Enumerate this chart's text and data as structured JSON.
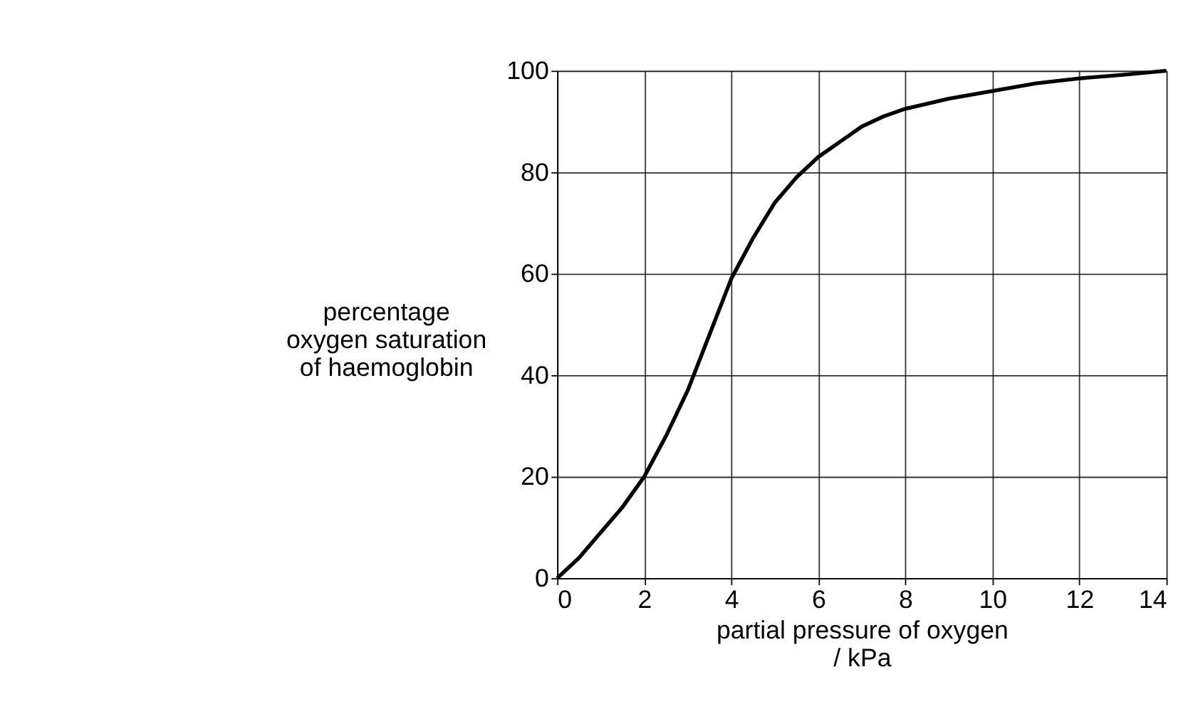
{
  "chart_data": {
    "type": "line",
    "xlabel": "partial pressure of oxygen\n/ kPa",
    "ylabel": "percentage\noxygen saturation\nof haemoglobin",
    "x": [
      0,
      0.5,
      1,
      1.5,
      2,
      2.5,
      3,
      3.5,
      4,
      4.5,
      5,
      5.5,
      6,
      6.5,
      7,
      7.5,
      8,
      9,
      10,
      11,
      12,
      13,
      14
    ],
    "series": [
      {
        "color": "#000000",
        "values": [
          0,
          4,
          9,
          14,
          20,
          28,
          37,
          48,
          59,
          67,
          74,
          79,
          83,
          86,
          89,
          91,
          92.5,
          94.5,
          96,
          97.5,
          98.5,
          99.2,
          100
        ]
      }
    ],
    "xlim": [
      0,
      14
    ],
    "xticks": [
      0,
      2,
      4,
      6,
      8,
      10,
      12,
      14
    ],
    "ylim": [
      0,
      100
    ],
    "yticks": [
      0,
      20,
      40,
      60,
      80,
      100
    ],
    "grid": true,
    "marker": "none",
    "line_style": "solid"
  }
}
